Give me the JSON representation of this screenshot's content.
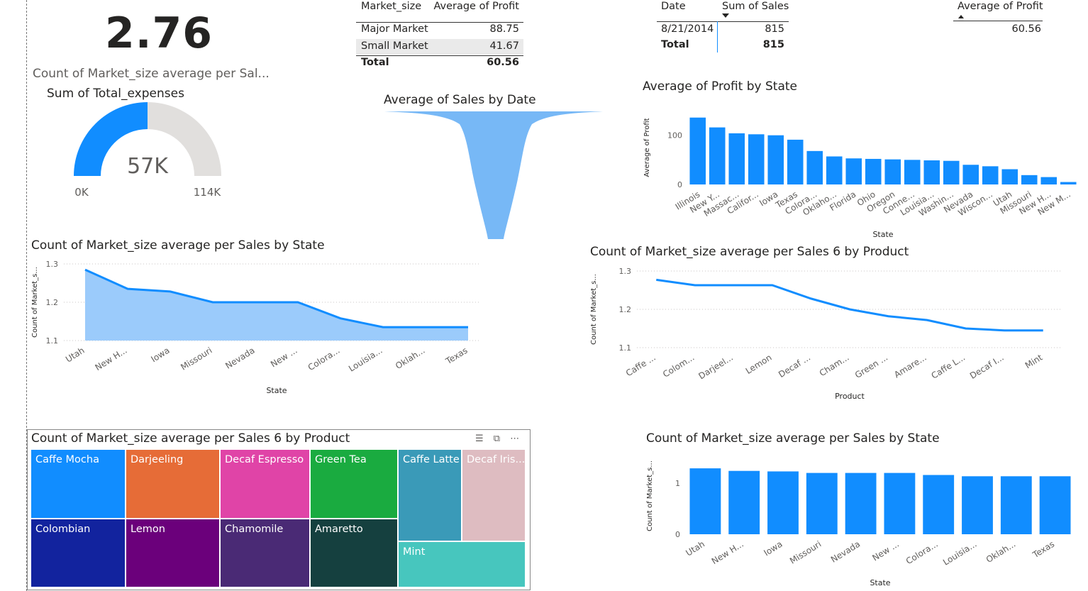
{
  "card": {
    "value": "2.76",
    "label": "Count of Market_size average per Sal..."
  },
  "gauge": {
    "title": "Sum of Total_expenses",
    "value_label": "57K",
    "min_label": "0K",
    "max_label": "114K",
    "value": 57,
    "min": 0,
    "max": 114,
    "fill_color": "#118DFF",
    "track_color": "#E1DFDD"
  },
  "table_market": {
    "headers": [
      "Market_size",
      "Average of Profit"
    ],
    "rows": [
      {
        "name": "Major Market",
        "value": "88.75"
      },
      {
        "name": "Small Market",
        "value": "41.67"
      }
    ],
    "total_label": "Total",
    "total_value": "60.56"
  },
  "table_date": {
    "headers": [
      "Date",
      "Sum of Sales"
    ],
    "rows": [
      {
        "date": "8/21/2014",
        "value": "815"
      }
    ],
    "total_label": "Total",
    "total_value": "815"
  },
  "table_profit": {
    "header": "Average of Profit",
    "value": "60.56"
  },
  "funnel": {
    "title": "Average of Sales by Date",
    "color": "#77B8F6"
  },
  "chart_data": [
    {
      "id": "profit_by_state",
      "type": "bar",
      "title": "Average of Profit by State",
      "xlabel": "State",
      "ylabel": "Average of Profit",
      "categories": [
        "Illinois",
        "New Y...",
        "Massac...",
        "Califor...",
        "Iowa",
        "Texas",
        "Colora...",
        "Oklaho...",
        "Florida",
        "Ohio",
        "Oregon",
        "Conne...",
        "Louisia...",
        "Washin...",
        "Nevada",
        "Wiscon...",
        "Utah",
        "Missouri",
        "New H...",
        "New M..."
      ],
      "values": [
        136,
        116,
        104,
        102,
        100,
        91,
        68,
        57,
        53,
        52,
        51,
        50,
        49,
        48,
        40,
        37,
        31,
        19,
        15,
        5
      ],
      "yticks": [
        "0",
        "100"
      ],
      "ylim": [
        0,
        150
      ],
      "color": "#118DFF"
    },
    {
      "id": "market_area_by_state",
      "type": "area",
      "title": "Count of Market_size average per Sales by State",
      "xlabel": "State",
      "ylabel": "Count of Market_s...",
      "categories": [
        "Utah",
        "New H...",
        "Iowa",
        "Missouri",
        "Nevada",
        "New ...",
        "Colora...",
        "Louisia...",
        "Oklah...",
        "Texas"
      ],
      "values": [
        1.285,
        1.235,
        1.228,
        1.2,
        1.2,
        1.2,
        1.158,
        1.135,
        1.135,
        1.135
      ],
      "yticks": [
        "1.1",
        "1.2",
        "1.3"
      ],
      "ylim": [
        1.1,
        1.3
      ],
      "color": "#118DFF",
      "fill": "#9BCBFB"
    },
    {
      "id": "market_line_by_product",
      "type": "line",
      "title": "Count of Market_size average per Sales 6 by Product",
      "xlabel": "Product",
      "ylabel": "Count of Market_s...",
      "categories": [
        "Caffe ...",
        "Colom...",
        "Darjeel...",
        "Lemon",
        "Decaf ...",
        "Cham...",
        "Green ...",
        "Amare...",
        "Caffe L...",
        "Decaf I...",
        "Mint"
      ],
      "values": [
        1.277,
        1.263,
        1.263,
        1.263,
        1.228,
        1.2,
        1.182,
        1.172,
        1.15,
        1.145,
        1.145
      ],
      "yticks": [
        "1.1",
        "1.2",
        "1.3"
      ],
      "ylim": [
        1.1,
        1.3
      ],
      "color": "#118DFF"
    },
    {
      "id": "market_bar_by_state",
      "type": "bar",
      "title": "Count of Market_size average per Sales by State",
      "xlabel": "State",
      "ylabel": "Count of Market_s...",
      "categories": [
        "Utah",
        "New H...",
        "Iowa",
        "Missouri",
        "Nevada",
        "New ...",
        "Colora...",
        "Louisia...",
        "Oklah...",
        "Texas"
      ],
      "values": [
        1.29,
        1.24,
        1.23,
        1.2,
        1.2,
        1.2,
        1.16,
        1.135,
        1.135,
        1.135
      ],
      "yticks": [
        "0",
        "1"
      ],
      "ylim": [
        0,
        1.5
      ],
      "color": "#118DFF"
    }
  ],
  "treemap": {
    "title": "Count of Market_size average per Sales 6 by Product",
    "tiles": [
      {
        "label": "Caffe Mocha",
        "color": "#118DFF"
      },
      {
        "label": "Colombian",
        "color": "#12239E"
      },
      {
        "label": "Darjeeling",
        "color": "#E66C37"
      },
      {
        "label": "Lemon",
        "color": "#6B007B"
      },
      {
        "label": "Decaf Espresso",
        "color": "#E044A7"
      },
      {
        "label": "Chamomile",
        "color": "#4A2A75"
      },
      {
        "label": "Green Tea",
        "color": "#1AAB40"
      },
      {
        "label": "Amaretto",
        "color": "#15403F"
      },
      {
        "label": "Caffe Latte",
        "color": "#3A9AB8"
      },
      {
        "label": "Decaf Iris...",
        "color": "#DEBCC1"
      },
      {
        "label": "Mint",
        "color": "#47C6BE"
      }
    ]
  }
}
